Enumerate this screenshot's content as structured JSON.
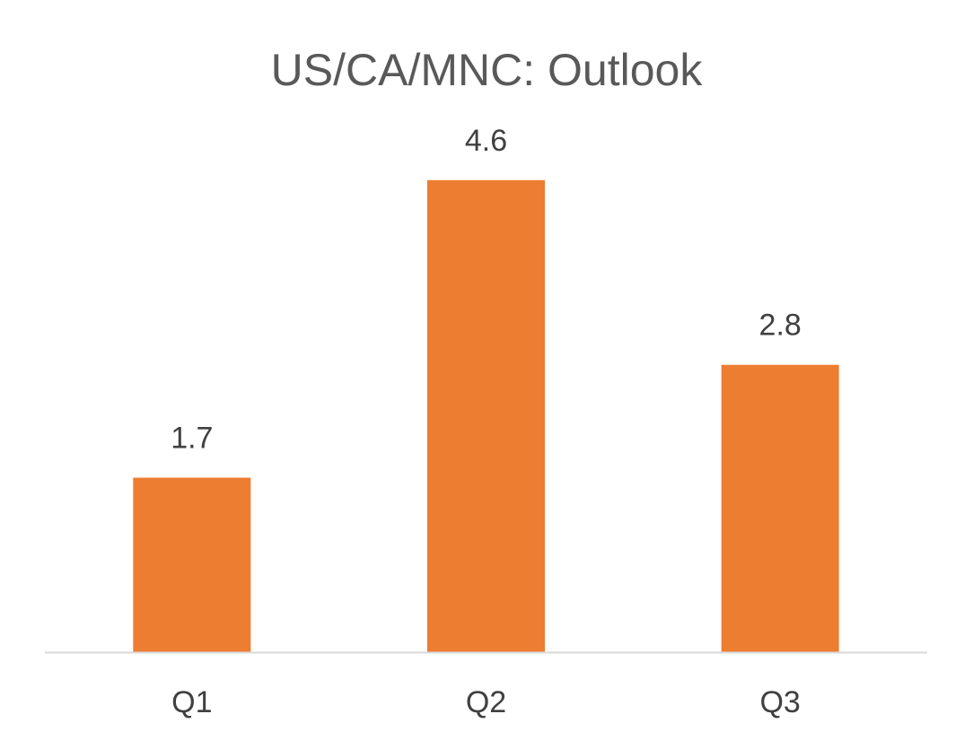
{
  "chart_data": {
    "type": "bar",
    "title": "US/CA/MNC: Outlook",
    "categories": [
      "Q1",
      "Q2",
      "Q3"
    ],
    "values": [
      1.7,
      4.6,
      2.8
    ],
    "value_labels": [
      "1.7",
      "4.6",
      "2.8"
    ],
    "xlabel": "",
    "ylabel": "",
    "ylim": [
      0,
      5.7
    ],
    "grid": false,
    "legend": "none",
    "bar_color": "#ED7D31",
    "axis_color": "#D9D9D9"
  }
}
